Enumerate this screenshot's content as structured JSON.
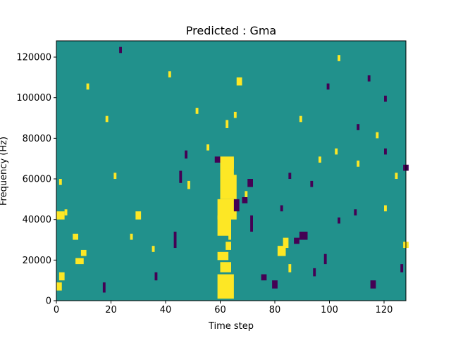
{
  "chart_data": {
    "type": "heatmap",
    "title": "Predicted : Gma",
    "xlabel": "Time step",
    "ylabel": "Frequency (Hz)",
    "xlim": [
      0,
      128
    ],
    "ylim": [
      0,
      128000
    ],
    "x_ticks": [
      0,
      20,
      40,
      60,
      80,
      100,
      120
    ],
    "y_ticks": [
      0,
      20000,
      40000,
      60000,
      80000,
      100000,
      120000
    ],
    "y_tick_labels": [
      "0",
      "20000",
      "40000",
      "60000",
      "80000",
      "100000",
      "120000"
    ],
    "grid": false,
    "legend": "none",
    "colors": {
      "background": "#21918c",
      "high": "#fde725",
      "low": "#440154"
    },
    "high_cells": [
      [
        1,
        5000,
        2,
        4000
      ],
      [
        2,
        10000,
        2,
        4000
      ],
      [
        1,
        40000,
        3,
        4000
      ],
      [
        10,
        22000,
        2,
        3000
      ],
      [
        8,
        18000,
        3,
        3000
      ],
      [
        30,
        40000,
        2,
        4000
      ],
      [
        49,
        55000,
        1,
        4000
      ],
      [
        60,
        1000,
        6,
        12000
      ],
      [
        61,
        14000,
        4,
        5000
      ],
      [
        60,
        20000,
        4,
        4000
      ],
      [
        60,
        32000,
        5,
        10000
      ],
      [
        60,
        40000,
        7,
        10000
      ],
      [
        61,
        50000,
        6,
        12000
      ],
      [
        61,
        60000,
        5,
        10000
      ],
      [
        61,
        65000,
        5,
        6000
      ],
      [
        63,
        25000,
        2,
        4000
      ],
      [
        64,
        30000,
        1,
        3000
      ],
      [
        67,
        106000,
        2,
        4000
      ],
      [
        63,
        85000,
        1,
        4000
      ],
      [
        66,
        90000,
        1,
        3000
      ],
      [
        82,
        22000,
        3,
        5000
      ],
      [
        84,
        26000,
        2,
        5000
      ],
      [
        90,
        88000,
        1,
        3000
      ],
      [
        128,
        26000,
        2,
        3000
      ],
      [
        2,
        57000,
        1,
        3000
      ],
      [
        4,
        42000,
        1,
        3000
      ],
      [
        7,
        30000,
        2,
        3000
      ],
      [
        12,
        104000,
        1,
        3000
      ],
      [
        19,
        88000,
        1,
        3000
      ],
      [
        22,
        60000,
        1,
        3000
      ],
      [
        28,
        30000,
        1,
        3000
      ],
      [
        36,
        24000,
        1,
        3000
      ],
      [
        42,
        110000,
        1,
        3000
      ],
      [
        52,
        92000,
        1,
        3000
      ],
      [
        56,
        74000,
        1,
        3000
      ],
      [
        70,
        50000,
        1,
        4000
      ],
      [
        86,
        14000,
        1,
        4000
      ],
      [
        97,
        68000,
        1,
        3000
      ],
      [
        103,
        72000,
        1,
        3000
      ],
      [
        104,
        118000,
        1,
        3000
      ],
      [
        111,
        66000,
        1,
        3000
      ],
      [
        118,
        80000,
        1,
        3000
      ],
      [
        121,
        44000,
        1,
        3000
      ],
      [
        125,
        60000,
        1,
        3000
      ]
    ],
    "low_cells": [
      [
        18,
        4000,
        1,
        5000
      ],
      [
        24,
        122000,
        1,
        3000
      ],
      [
        37,
        10000,
        1,
        4000
      ],
      [
        44,
        26000,
        1,
        8000
      ],
      [
        46,
        58000,
        1,
        6000
      ],
      [
        48,
        70000,
        1,
        4000
      ],
      [
        59,
        68000,
        2,
        3000
      ],
      [
        66,
        44000,
        2,
        6000
      ],
      [
        69,
        48000,
        2,
        3000
      ],
      [
        71,
        56000,
        2,
        4000
      ],
      [
        72,
        34000,
        1,
        8000
      ],
      [
        76,
        10000,
        2,
        3000
      ],
      [
        80,
        6000,
        2,
        4000
      ],
      [
        83,
        44000,
        1,
        3000
      ],
      [
        86,
        60000,
        1,
        3000
      ],
      [
        88,
        28000,
        2,
        3000
      ],
      [
        90,
        30000,
        3,
        4000
      ],
      [
        94,
        56000,
        1,
        3000
      ],
      [
        95,
        12000,
        1,
        4000
      ],
      [
        99,
        18000,
        1,
        5000
      ],
      [
        104,
        38000,
        1,
        3000
      ],
      [
        110,
        42000,
        1,
        3000
      ],
      [
        111,
        84000,
        1,
        3000
      ],
      [
        116,
        6000,
        2,
        4000
      ],
      [
        121,
        72000,
        1,
        3000
      ],
      [
        127,
        14000,
        1,
        4000
      ],
      [
        128,
        64000,
        2,
        3000
      ],
      [
        121,
        98000,
        1,
        3000
      ],
      [
        115,
        108000,
        1,
        3000
      ],
      [
        100,
        104000,
        1,
        3000
      ]
    ]
  }
}
